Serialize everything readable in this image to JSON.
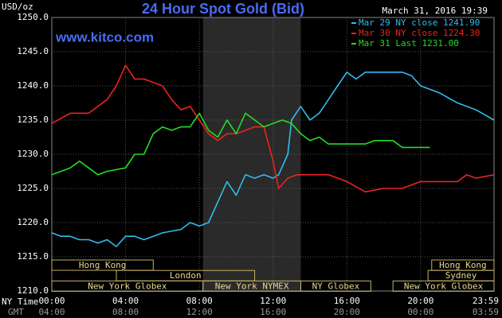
{
  "chart_data": {
    "type": "line",
    "title": "24 Hour Spot Gold (Bid)",
    "site": "www.kitco.com",
    "timestamp": "March 31, 2016 19:39",
    "y_label": "USD/oz",
    "x_label": "NY Time",
    "x2_label": "GMT",
    "grid": true,
    "legend": "top-right",
    "xlim": [
      0,
      23.98
    ],
    "xticks": [
      {
        "value": 0,
        "label": "00:00"
      },
      {
        "value": 4,
        "label": "04:00"
      },
      {
        "value": 8,
        "label": "08:00"
      },
      {
        "value": 12,
        "label": "12:00"
      },
      {
        "value": 16,
        "label": "16:00"
      },
      {
        "value": 20,
        "label": "20:00"
      },
      {
        "value": 23.98,
        "label": "23:59"
      }
    ],
    "gmt_labels": [
      "04:00",
      "08:00",
      "12:00",
      "16:00",
      "20:00",
      "00:00",
      "03:59"
    ],
    "ylim": [
      1210,
      1250
    ],
    "yticks": [
      {
        "value": 1210,
        "label": "1210.0"
      },
      {
        "value": 1215,
        "label": "1215.0"
      },
      {
        "value": 1220,
        "label": "1220.0"
      },
      {
        "value": 1225,
        "label": "1225.0"
      },
      {
        "value": 1230,
        "label": "1230.0"
      },
      {
        "value": 1235,
        "label": "1235.0"
      },
      {
        "value": 1240,
        "label": "1240.0"
      },
      {
        "value": 1245,
        "label": "1245.0"
      },
      {
        "value": 1250,
        "label": "1250.0"
      }
    ],
    "series": [
      {
        "name": "Mar 29 NY close 1241.90",
        "color": "#33bbee",
        "x": [
          0,
          0.5,
          1,
          1.5,
          2,
          2.5,
          3,
          3.5,
          4,
          4.5,
          5,
          5.5,
          6,
          7,
          7.5,
          8,
          8.5,
          9,
          9.5,
          10,
          10.5,
          11,
          11.5,
          12,
          12.3,
          12.8,
          13,
          13.5,
          14,
          14.5,
          15,
          15.5,
          16,
          16.5,
          17,
          18,
          19,
          19.5,
          20,
          21,
          22,
          23,
          23.98
        ],
        "values": [
          1218.5,
          1218,
          1218,
          1217.5,
          1217.5,
          1217,
          1217.5,
          1216.5,
          1218,
          1218,
          1217.5,
          1218,
          1218.5,
          1219,
          1220,
          1219.5,
          1220,
          1223,
          1226,
          1224,
          1227,
          1226.5,
          1227,
          1226.5,
          1227,
          1230,
          1235,
          1237,
          1235,
          1236,
          1238,
          1240,
          1242,
          1241,
          1242,
          1242,
          1242,
          1241.5,
          1240,
          1239,
          1237.5,
          1236.5,
          1235
        ]
      },
      {
        "name": "Mar 30 NY close 1224.30",
        "color": "#ee2222",
        "x": [
          0,
          1,
          2,
          3,
          3.5,
          4,
          4.5,
          5,
          6,
          6.5,
          7,
          7.5,
          8,
          8.5,
          9,
          9.5,
          10,
          10.5,
          11,
          11.5,
          12,
          12.3,
          12.8,
          13.3,
          14,
          15,
          16,
          17,
          18,
          18.5,
          19,
          20,
          21,
          22,
          22.5,
          23,
          23.98
        ],
        "values": [
          1234.5,
          1236,
          1236,
          1238,
          1240,
          1243,
          1241,
          1241,
          1240,
          1238,
          1236.5,
          1237,
          1235,
          1233,
          1232,
          1233,
          1233,
          1233.5,
          1234,
          1234,
          1229,
          1225,
          1226.5,
          1227,
          1227,
          1227,
          1226,
          1224.5,
          1225,
          1225,
          1225,
          1226,
          1226,
          1226,
          1227,
          1226.5,
          1227
        ]
      },
      {
        "name": "Mar 31 Last 1231.00",
        "color": "#22dd22",
        "x": [
          0,
          1,
          1.5,
          2,
          2.5,
          3,
          4,
          4.5,
          5,
          5.5,
          6,
          6.5,
          7,
          7.5,
          8,
          8.5,
          9,
          9.5,
          10,
          10.5,
          11,
          11.5,
          12,
          12.5,
          13,
          13.5,
          14,
          14.5,
          15,
          16,
          17,
          17.5,
          18,
          18.5,
          19,
          19.5,
          20,
          20.5
        ],
        "values": [
          1227,
          1228,
          1229,
          1228,
          1227,
          1227.5,
          1228,
          1230,
          1230,
          1233,
          1234,
          1233.5,
          1234,
          1234,
          1236,
          1233.5,
          1232.5,
          1235,
          1233,
          1236,
          1235,
          1234,
          1234.5,
          1235,
          1234.5,
          1233,
          1232,
          1232.5,
          1231.5,
          1231.5,
          1231.5,
          1232,
          1232,
          1232,
          1231,
          1231,
          1231,
          1231
        ]
      }
    ],
    "sessions": [
      {
        "label": "Hong Kong",
        "row": 0,
        "start": 0,
        "end": 5.5
      },
      {
        "label": "London",
        "row": 1,
        "start": 3.5,
        "end": 11
      },
      {
        "label": "New York Globex",
        "row": 2,
        "start": 0,
        "end": 8.2
      },
      {
        "label": "New York NYMEX",
        "row": 2,
        "start": 8.2,
        "end": 13.5,
        "shaded": true
      },
      {
        "label": "NY Globex",
        "row": 2,
        "start": 13.5,
        "end": 17.3
      },
      {
        "label": "Sydney",
        "row": 1,
        "start": 20.4,
        "end": 23.98
      },
      {
        "label": "Hong Kong",
        "row": 0,
        "start": 20.6,
        "end": 23.98
      },
      {
        "label": "New York Globex",
        "row": 2,
        "start": 18.5,
        "end": 23.98
      }
    ]
  }
}
